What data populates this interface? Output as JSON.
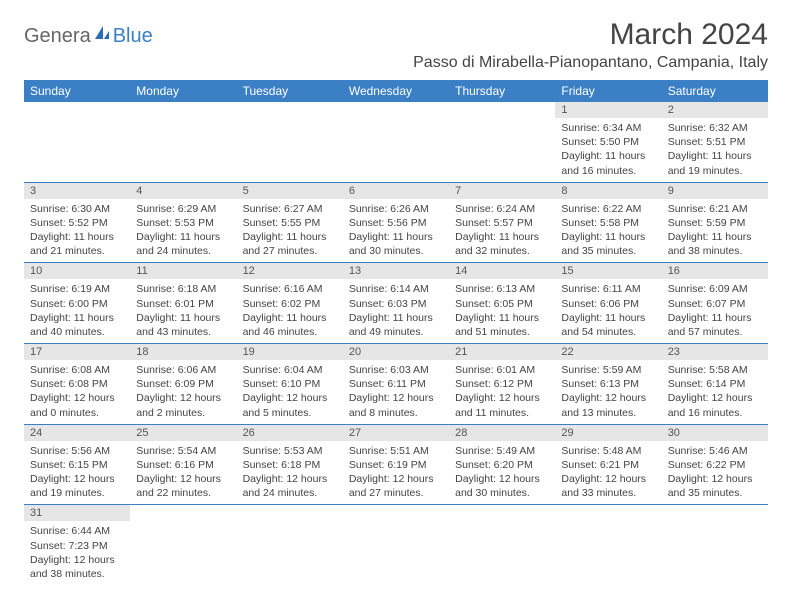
{
  "logo": {
    "general": "Genera",
    "blue": "Blue"
  },
  "title": "March 2024",
  "location": "Passo di Mirabella-Pianopantano, Campania, Italy",
  "headers": [
    "Sunday",
    "Monday",
    "Tuesday",
    "Wednesday",
    "Thursday",
    "Friday",
    "Saturday"
  ],
  "colors": {
    "header_bg": "#3b7fc4",
    "daynum_bg": "#e6e6e6"
  },
  "days": {
    "1": {
      "sunrise": "Sunrise: 6:34 AM",
      "sunset": "Sunset: 5:50 PM",
      "daylight": "Daylight: 11 hours and 16 minutes."
    },
    "2": {
      "sunrise": "Sunrise: 6:32 AM",
      "sunset": "Sunset: 5:51 PM",
      "daylight": "Daylight: 11 hours and 19 minutes."
    },
    "3": {
      "sunrise": "Sunrise: 6:30 AM",
      "sunset": "Sunset: 5:52 PM",
      "daylight": "Daylight: 11 hours and 21 minutes."
    },
    "4": {
      "sunrise": "Sunrise: 6:29 AM",
      "sunset": "Sunset: 5:53 PM",
      "daylight": "Daylight: 11 hours and 24 minutes."
    },
    "5": {
      "sunrise": "Sunrise: 6:27 AM",
      "sunset": "Sunset: 5:55 PM",
      "daylight": "Daylight: 11 hours and 27 minutes."
    },
    "6": {
      "sunrise": "Sunrise: 6:26 AM",
      "sunset": "Sunset: 5:56 PM",
      "daylight": "Daylight: 11 hours and 30 minutes."
    },
    "7": {
      "sunrise": "Sunrise: 6:24 AM",
      "sunset": "Sunset: 5:57 PM",
      "daylight": "Daylight: 11 hours and 32 minutes."
    },
    "8": {
      "sunrise": "Sunrise: 6:22 AM",
      "sunset": "Sunset: 5:58 PM",
      "daylight": "Daylight: 11 hours and 35 minutes."
    },
    "9": {
      "sunrise": "Sunrise: 6:21 AM",
      "sunset": "Sunset: 5:59 PM",
      "daylight": "Daylight: 11 hours and 38 minutes."
    },
    "10": {
      "sunrise": "Sunrise: 6:19 AM",
      "sunset": "Sunset: 6:00 PM",
      "daylight": "Daylight: 11 hours and 40 minutes."
    },
    "11": {
      "sunrise": "Sunrise: 6:18 AM",
      "sunset": "Sunset: 6:01 PM",
      "daylight": "Daylight: 11 hours and 43 minutes."
    },
    "12": {
      "sunrise": "Sunrise: 6:16 AM",
      "sunset": "Sunset: 6:02 PM",
      "daylight": "Daylight: 11 hours and 46 minutes."
    },
    "13": {
      "sunrise": "Sunrise: 6:14 AM",
      "sunset": "Sunset: 6:03 PM",
      "daylight": "Daylight: 11 hours and 49 minutes."
    },
    "14": {
      "sunrise": "Sunrise: 6:13 AM",
      "sunset": "Sunset: 6:05 PM",
      "daylight": "Daylight: 11 hours and 51 minutes."
    },
    "15": {
      "sunrise": "Sunrise: 6:11 AM",
      "sunset": "Sunset: 6:06 PM",
      "daylight": "Daylight: 11 hours and 54 minutes."
    },
    "16": {
      "sunrise": "Sunrise: 6:09 AM",
      "sunset": "Sunset: 6:07 PM",
      "daylight": "Daylight: 11 hours and 57 minutes."
    },
    "17": {
      "sunrise": "Sunrise: 6:08 AM",
      "sunset": "Sunset: 6:08 PM",
      "daylight": "Daylight: 12 hours and 0 minutes."
    },
    "18": {
      "sunrise": "Sunrise: 6:06 AM",
      "sunset": "Sunset: 6:09 PM",
      "daylight": "Daylight: 12 hours and 2 minutes."
    },
    "19": {
      "sunrise": "Sunrise: 6:04 AM",
      "sunset": "Sunset: 6:10 PM",
      "daylight": "Daylight: 12 hours and 5 minutes."
    },
    "20": {
      "sunrise": "Sunrise: 6:03 AM",
      "sunset": "Sunset: 6:11 PM",
      "daylight": "Daylight: 12 hours and 8 minutes."
    },
    "21": {
      "sunrise": "Sunrise: 6:01 AM",
      "sunset": "Sunset: 6:12 PM",
      "daylight": "Daylight: 12 hours and 11 minutes."
    },
    "22": {
      "sunrise": "Sunrise: 5:59 AM",
      "sunset": "Sunset: 6:13 PM",
      "daylight": "Daylight: 12 hours and 13 minutes."
    },
    "23": {
      "sunrise": "Sunrise: 5:58 AM",
      "sunset": "Sunset: 6:14 PM",
      "daylight": "Daylight: 12 hours and 16 minutes."
    },
    "24": {
      "sunrise": "Sunrise: 5:56 AM",
      "sunset": "Sunset: 6:15 PM",
      "daylight": "Daylight: 12 hours and 19 minutes."
    },
    "25": {
      "sunrise": "Sunrise: 5:54 AM",
      "sunset": "Sunset: 6:16 PM",
      "daylight": "Daylight: 12 hours and 22 minutes."
    },
    "26": {
      "sunrise": "Sunrise: 5:53 AM",
      "sunset": "Sunset: 6:18 PM",
      "daylight": "Daylight: 12 hours and 24 minutes."
    },
    "27": {
      "sunrise": "Sunrise: 5:51 AM",
      "sunset": "Sunset: 6:19 PM",
      "daylight": "Daylight: 12 hours and 27 minutes."
    },
    "28": {
      "sunrise": "Sunrise: 5:49 AM",
      "sunset": "Sunset: 6:20 PM",
      "daylight": "Daylight: 12 hours and 30 minutes."
    },
    "29": {
      "sunrise": "Sunrise: 5:48 AM",
      "sunset": "Sunset: 6:21 PM",
      "daylight": "Daylight: 12 hours and 33 minutes."
    },
    "30": {
      "sunrise": "Sunrise: 5:46 AM",
      "sunset": "Sunset: 6:22 PM",
      "daylight": "Daylight: 12 hours and 35 minutes."
    },
    "31": {
      "sunrise": "Sunrise: 6:44 AM",
      "sunset": "Sunset: 7:23 PM",
      "daylight": "Daylight: 12 hours and 38 minutes."
    }
  },
  "grid": [
    [
      null,
      null,
      null,
      null,
      null,
      "1",
      "2"
    ],
    [
      "3",
      "4",
      "5",
      "6",
      "7",
      "8",
      "9"
    ],
    [
      "10",
      "11",
      "12",
      "13",
      "14",
      "15",
      "16"
    ],
    [
      "17",
      "18",
      "19",
      "20",
      "21",
      "22",
      "23"
    ],
    [
      "24",
      "25",
      "26",
      "27",
      "28",
      "29",
      "30"
    ],
    [
      "31",
      null,
      null,
      null,
      null,
      null,
      null
    ]
  ]
}
